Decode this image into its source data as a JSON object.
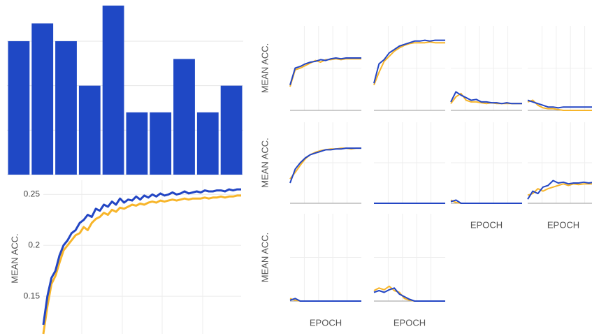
{
  "chart_data": [
    {
      "type": "bar",
      "color": "#1f48c5",
      "values": [
        3,
        3.4,
        3,
        2,
        3.8,
        1.4,
        1.4,
        2.6,
        1.4,
        2
      ],
      "ylim": [
        0,
        3.8
      ],
      "yticks": [
        1,
        2,
        3
      ],
      "grid": true
    },
    {
      "type": "line",
      "y_label": "MEAN ACC.",
      "ylim": [
        0.113,
        0.264
      ],
      "yticks": [
        0.15,
        0.2,
        0.25
      ],
      "grid": true,
      "series": [
        {
          "color": "#f7b52a",
          "values": [
            0.113,
            0.14,
            0.162,
            0.17,
            0.183,
            0.195,
            0.2,
            0.205,
            0.21,
            0.212,
            0.218,
            0.215,
            0.222,
            0.226,
            0.228,
            0.232,
            0.23,
            0.235,
            0.233,
            0.237,
            0.236,
            0.238,
            0.24,
            0.239,
            0.241,
            0.24,
            0.242,
            0.243,
            0.242,
            0.244,
            0.243,
            0.244,
            0.245,
            0.244,
            0.245,
            0.246,
            0.245,
            0.246,
            0.246,
            0.246,
            0.247,
            0.246,
            0.247,
            0.247,
            0.248,
            0.247,
            0.248,
            0.248,
            0.249,
            0.249
          ]
        },
        {
          "color": "#2346c4",
          "values": [
            0.122,
            0.15,
            0.168,
            0.175,
            0.19,
            0.2,
            0.205,
            0.212,
            0.215,
            0.222,
            0.225,
            0.23,
            0.228,
            0.236,
            0.234,
            0.24,
            0.238,
            0.243,
            0.24,
            0.246,
            0.242,
            0.245,
            0.244,
            0.248,
            0.245,
            0.249,
            0.247,
            0.25,
            0.248,
            0.251,
            0.249,
            0.25,
            0.252,
            0.25,
            0.251,
            0.253,
            0.251,
            0.252,
            0.253,
            0.252,
            0.254,
            0.253,
            0.253,
            0.254,
            0.254,
            0.253,
            0.255,
            0.254,
            0.255,
            0.255
          ]
        }
      ]
    },
    {
      "type": "small-multiples",
      "y_label": "MEAN ACC.",
      "x_label": "EPOCH",
      "ylim": [
        0,
        1
      ],
      "colors": [
        "#f7b52a",
        "#2346c4"
      ],
      "panels": [
        {
          "series": [
            [
              0.28,
              0.48,
              0.5,
              0.53,
              0.56,
              0.59,
              0.57,
              0.6,
              0.6,
              0.61,
              0.6,
              0.61,
              0.61,
              0.61,
              0.61
            ],
            [
              0.3,
              0.5,
              0.52,
              0.55,
              0.57,
              0.58,
              0.6,
              0.59,
              0.61,
              0.62,
              0.61,
              0.62,
              0.62,
              0.62,
              0.62
            ]
          ]
        },
        {
          "series": [
            [
              0.3,
              0.45,
              0.58,
              0.64,
              0.7,
              0.74,
              0.77,
              0.79,
              0.8,
              0.8,
              0.8,
              0.81,
              0.8,
              0.8,
              0.8
            ],
            [
              0.32,
              0.55,
              0.6,
              0.68,
              0.72,
              0.76,
              0.78,
              0.8,
              0.82,
              0.82,
              0.83,
              0.82,
              0.83,
              0.83,
              0.83
            ]
          ]
        },
        {
          "series": [
            [
              0.08,
              0.16,
              0.2,
              0.12,
              0.1,
              0.1,
              0.09,
              0.08,
              0.09,
              0.08,
              0.08,
              0.08,
              0.08,
              0.08,
              0.08
            ],
            [
              0.1,
              0.22,
              0.18,
              0.15,
              0.12,
              0.13,
              0.1,
              0.1,
              0.09,
              0.09,
              0.08,
              0.09,
              0.08,
              0.08,
              0.08
            ]
          ]
        },
        {
          "series": [
            [
              0.1,
              0.12,
              0.06,
              0.03,
              0.02,
              0.02,
              0.01,
              0,
              0,
              0,
              0,
              0,
              0,
              0,
              0
            ],
            [
              0.12,
              0.1,
              0.08,
              0.06,
              0.04,
              0.04,
              0.03,
              0.04,
              0.04,
              0.04,
              0.04,
              0.04,
              0.04,
              0.04,
              0.04
            ]
          ]
        },
        {
          "series": [
            [
              0.3,
              0.38,
              0.47,
              0.55,
              0.6,
              0.63,
              0.65,
              0.66,
              0.67,
              0.67,
              0.68,
              0.68,
              0.67,
              0.68,
              0.68
            ],
            [
              0.25,
              0.42,
              0.5,
              0.56,
              0.6,
              0.62,
              0.64,
              0.66,
              0.66,
              0.67,
              0.67,
              0.68,
              0.68,
              0.68,
              0.68
            ]
          ]
        },
        {
          "series": [
            [
              0,
              0,
              0,
              0,
              0,
              0,
              0,
              0,
              0,
              0,
              0,
              0,
              0,
              0,
              0
            ],
            [
              0,
              0,
              0,
              0,
              0,
              0,
              0,
              0,
              0,
              0,
              0,
              0,
              0,
              0,
              0
            ]
          ]
        },
        {
          "series": [
            [
              0.04,
              0.01,
              0,
              0,
              0,
              0,
              0,
              0,
              0,
              0,
              0,
              0,
              0,
              0,
              0
            ],
            [
              0.02,
              0.04,
              0,
              0,
              0,
              0,
              0,
              0,
              0,
              0,
              0,
              0,
              0,
              0,
              0
            ]
          ]
        },
        {
          "series": [
            [
              0.1,
              0.12,
              0.18,
              0.15,
              0.18,
              0.2,
              0.22,
              0.24,
              0.22,
              0.24,
              0.23,
              0.24,
              0.24,
              0.24,
              0.25
            ],
            [
              0.05,
              0.15,
              0.12,
              0.2,
              0.22,
              0.28,
              0.25,
              0.26,
              0.24,
              0.25,
              0.25,
              0.26,
              0.25,
              0.26,
              0.27
            ]
          ]
        },
        {
          "series": [
            [
              0.03,
              0.01,
              0,
              0,
              0,
              0,
              0,
              0,
              0,
              0,
              0,
              0,
              0,
              0,
              0
            ],
            [
              0.01,
              0.03,
              0,
              0,
              0,
              0,
              0,
              0,
              0,
              0,
              0,
              0,
              0,
              0,
              0
            ]
          ]
        },
        {
          "series": [
            [
              0.12,
              0.15,
              0.13,
              0.17,
              0.12,
              0.1,
              0.03,
              0.01,
              0,
              0,
              0,
              0,
              0,
              0,
              0
            ],
            [
              0.1,
              0.12,
              0.1,
              0.13,
              0.15,
              0.08,
              0.05,
              0.02,
              0,
              0,
              0,
              0,
              0,
              0,
              0
            ]
          ]
        }
      ]
    }
  ]
}
